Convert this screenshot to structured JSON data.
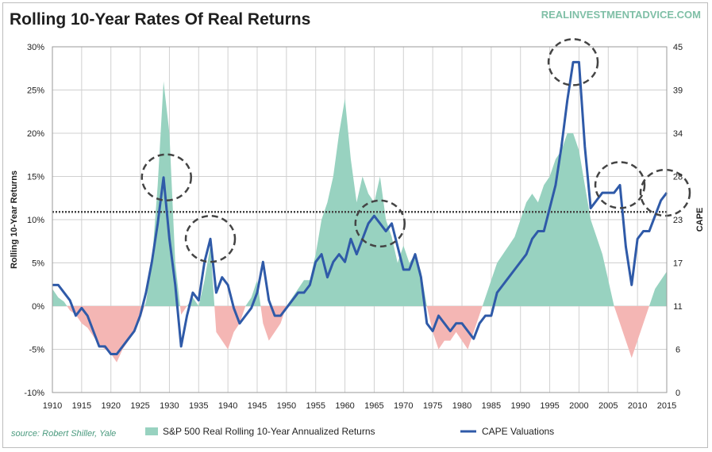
{
  "chart_data": {
    "type": "area+line",
    "title": "Rolling 10-Year Rates Of Real Returns",
    "brand": "REALINVESTMENTADVICE.COM",
    "source": "source:  Robert Shiller, Yale",
    "xlabel": "",
    "ylabel_left": "Rolling 10-Year Returns",
    "ylabel_right": "CAPE",
    "xlim": [
      1910,
      2015
    ],
    "ylim_left": [
      -10,
      30
    ],
    "ylim_right": [
      0,
      45
    ],
    "x_ticks": [
      "1910",
      "1915",
      "1920",
      "1925",
      "1930",
      "1935",
      "1940",
      "1945",
      "1950",
      "1955",
      "1960",
      "1965",
      "1970",
      "1975",
      "1980",
      "1985",
      "1990",
      "1995",
      "2000",
      "2005",
      "2010",
      "2015"
    ],
    "y_ticks_left": [
      "-10%",
      "-5%",
      "0%",
      "5%",
      "10%",
      "15%",
      "20%",
      "25%",
      "30%"
    ],
    "y_ticks_right": [
      "0",
      "6",
      "11",
      "17",
      "23",
      "28",
      "34",
      "39",
      "45"
    ],
    "grid": true,
    "reference_line": {
      "axis": "right",
      "value": 23.5,
      "style": "dotted"
    },
    "highlights": [
      1929.5,
      1937,
      1966,
      1999,
      2007,
      2015
    ],
    "colors": {
      "positive_area": "#98d2c0",
      "negative_area": "#f4b6b4",
      "cape_line": "#2f5aa8",
      "grid": "#d0d0d0",
      "brand": "#7fbfa6"
    },
    "series": [
      {
        "name": "S&P 500 Real Rolling 10-Year Annualized Returns",
        "axis": "left",
        "style": "area",
        "x": [
          1910,
          1911,
          1912,
          1913,
          1914,
          1915,
          1916,
          1917,
          1918,
          1919,
          1920,
          1921,
          1922,
          1923,
          1924,
          1925,
          1926,
          1927,
          1928,
          1929,
          1930,
          1931,
          1932,
          1933,
          1934,
          1935,
          1936,
          1937,
          1938,
          1939,
          1940,
          1941,
          1942,
          1943,
          1944,
          1945,
          1946,
          1947,
          1948,
          1949,
          1950,
          1951,
          1952,
          1953,
          1954,
          1955,
          1956,
          1957,
          1958,
          1959,
          1960,
          1961,
          1962,
          1963,
          1964,
          1965,
          1966,
          1967,
          1968,
          1969,
          1970,
          1971,
          1972,
          1973,
          1974,
          1975,
          1976,
          1977,
          1978,
          1979,
          1980,
          1981,
          1982,
          1983,
          1984,
          1985,
          1986,
          1987,
          1988,
          1989,
          1990,
          1991,
          1992,
          1993,
          1994,
          1995,
          1996,
          1997,
          1998,
          1999,
          2000,
          2001,
          2002,
          2003,
          2004,
          2005,
          2006,
          2007,
          2008,
          2009,
          2010,
          2011,
          2012,
          2013,
          2014,
          2015
        ],
        "values": [
          2,
          1,
          0.5,
          -0.5,
          -1,
          -2,
          -2.5,
          -3.5,
          -4.5,
          -5,
          -5.5,
          -6.5,
          -5,
          -4,
          -3,
          -1.5,
          0.5,
          5,
          14,
          26,
          20,
          5,
          -1,
          0,
          1,
          0,
          3,
          7,
          -3,
          -4,
          -5,
          -3,
          -2,
          0,
          1,
          3,
          -2,
          -4,
          -3,
          -2,
          0,
          1,
          2,
          3,
          3,
          6,
          10,
          12,
          15,
          20,
          24,
          17,
          12,
          15,
          13,
          12,
          15,
          10,
          8,
          5,
          7,
          5,
          6,
          4,
          0,
          -3,
          -5,
          -4,
          -4,
          -3,
          -4,
          -5,
          -3,
          -1,
          1,
          3,
          5,
          6,
          7,
          8,
          10,
          12,
          13,
          12,
          14,
          15,
          17,
          18,
          20,
          20,
          18,
          14,
          10,
          8,
          6,
          3,
          0,
          -2,
          -4,
          -6,
          -4,
          -2,
          0,
          2,
          3,
          4
        ]
      },
      {
        "name": "CAPE Valuations",
        "axis": "right",
        "style": "line",
        "x": [
          1910,
          1911,
          1912,
          1913,
          1914,
          1915,
          1916,
          1917,
          1918,
          1919,
          1920,
          1921,
          1922,
          1923,
          1924,
          1925,
          1926,
          1927,
          1928,
          1929,
          1930,
          1931,
          1932,
          1933,
          1934,
          1935,
          1936,
          1937,
          1938,
          1939,
          1940,
          1941,
          1942,
          1943,
          1944,
          1945,
          1946,
          1947,
          1948,
          1949,
          1950,
          1951,
          1952,
          1953,
          1954,
          1955,
          1956,
          1957,
          1958,
          1959,
          1960,
          1961,
          1962,
          1963,
          1964,
          1965,
          1966,
          1967,
          1968,
          1969,
          1970,
          1971,
          1972,
          1973,
          1974,
          1975,
          1976,
          1977,
          1978,
          1979,
          1980,
          1981,
          1982,
          1983,
          1984,
          1985,
          1986,
          1987,
          1988,
          1989,
          1990,
          1991,
          1992,
          1993,
          1994,
          1995,
          1996,
          1997,
          1998,
          1999,
          2000,
          2001,
          2002,
          2003,
          2004,
          2005,
          2006,
          2007,
          2008,
          2009,
          2010,
          2011,
          2012,
          2013,
          2014,
          2015
        ],
        "values": [
          14,
          14,
          13,
          12,
          10,
          11,
          10,
          8,
          6,
          6,
          5,
          5,
          6,
          7,
          8,
          10,
          13,
          17,
          22,
          28,
          20,
          14,
          6,
          10,
          13,
          12,
          17,
          20,
          13,
          15,
          14,
          11,
          9,
          10,
          11,
          13,
          17,
          12,
          10,
          10,
          11,
          12,
          13,
          13,
          14,
          17,
          18,
          15,
          17,
          18,
          17,
          20,
          18,
          20,
          22,
          23,
          22,
          21,
          22,
          19,
          16,
          16,
          18,
          15,
          9,
          8,
          10,
          9,
          8,
          9,
          9,
          8,
          7,
          9,
          10,
          10,
          13,
          14,
          15,
          16,
          17,
          18,
          20,
          21,
          21,
          24,
          27,
          32,
          38,
          43,
          43,
          32,
          24,
          25,
          26,
          26,
          26,
          27,
          19,
          14,
          20,
          21,
          21,
          23,
          25,
          26
        ]
      }
    ]
  }
}
